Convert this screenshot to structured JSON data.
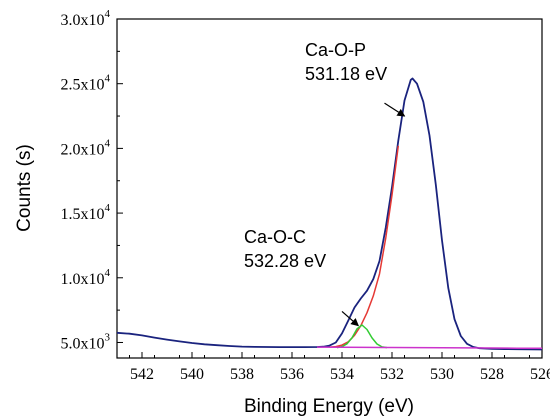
{
  "chart_data": {
    "type": "line",
    "title": "",
    "xlabel": "Binding Energy (eV)",
    "ylabel": "Counts (s)",
    "xlim": [
      543,
      526
    ],
    "ylim": [
      3800,
      30000
    ],
    "x_reversed": true,
    "x_ticks": [
      {
        "value": 542,
        "label": "542"
      },
      {
        "value": 540,
        "label": "540"
      },
      {
        "value": 538,
        "label": "538"
      },
      {
        "value": 536,
        "label": "536"
      },
      {
        "value": 534,
        "label": "534"
      },
      {
        "value": 532,
        "label": "532"
      },
      {
        "value": 530,
        "label": "530"
      },
      {
        "value": 528,
        "label": "528"
      },
      {
        "value": 526,
        "label": "526"
      }
    ],
    "y_ticks": [
      {
        "value": 5000,
        "mantissa": "5.0x10",
        "exp": "3"
      },
      {
        "value": 10000,
        "mantissa": "1.0x10",
        "exp": "4"
      },
      {
        "value": 15000,
        "mantissa": "1.5x10",
        "exp": "4"
      },
      {
        "value": 20000,
        "mantissa": "2.0x10",
        "exp": "4"
      },
      {
        "value": 25000,
        "mantissa": "2.5x10",
        "exp": "4"
      },
      {
        "value": 30000,
        "mantissa": "3.0x10",
        "exp": "4"
      }
    ],
    "grid": false,
    "legend": "none",
    "series": [
      {
        "color": "#1a237e",
        "x": [
          543,
          542.5,
          542,
          541.5,
          541,
          540.5,
          540,
          539.5,
          539,
          538.5,
          538,
          537.5,
          537,
          536.5,
          536,
          535.5,
          535,
          534.75,
          534.5,
          534.25,
          534,
          533.75,
          533.5,
          533.25,
          533,
          532.75,
          532.5,
          532.25,
          532,
          531.75,
          531.5,
          531.25,
          531.18,
          531,
          530.75,
          530.5,
          530.25,
          530,
          529.75,
          529.5,
          529.25,
          529,
          528.75,
          528.5,
          528,
          527.5,
          527,
          526.5,
          526
        ],
        "y": [
          5750,
          5680,
          5550,
          5380,
          5220,
          5080,
          4960,
          4860,
          4790,
          4730,
          4680,
          4660,
          4650,
          4640,
          4640,
          4640,
          4650,
          4670,
          4760,
          5000,
          5700,
          6700,
          7700,
          8400,
          9000,
          9900,
          11300,
          13900,
          17000,
          20600,
          23700,
          25300,
          25400,
          25000,
          23600,
          21000,
          17200,
          12900,
          9200,
          6800,
          5500,
          4900,
          4650,
          4560,
          4510,
          4490,
          4480,
          4470,
          4460
        ]
      },
      {
        "color": "#e53935",
        "x": [
          534.5,
          534.25,
          534,
          533.75,
          533.5,
          533.25,
          533,
          532.75,
          532.5,
          532.25,
          532,
          531.75
        ],
        "y": [
          4640,
          4680,
          4800,
          5050,
          5550,
          6300,
          7300,
          8600,
          10300,
          13100,
          16400,
          20200
        ]
      },
      {
        "color": "#33cc33",
        "x": [
          534.2,
          534,
          533.8,
          533.6,
          533.4,
          533.2,
          533,
          532.8,
          532.6,
          532.4,
          532.2
        ],
        "y": [
          4600,
          4680,
          4900,
          5350,
          6050,
          6350,
          6000,
          5350,
          4880,
          4660,
          4600
        ]
      },
      {
        "color": "#cc33cc",
        "x": [
          535,
          534,
          533,
          532,
          531,
          530,
          529,
          528,
          527,
          526
        ],
        "y": [
          4640,
          4630,
          4620,
          4610,
          4600,
          4590,
          4580,
          4570,
          4560,
          4550
        ]
      }
    ],
    "annotations": [
      {
        "line1": "Ca-O-P",
        "line2": "531.18 eV",
        "arrow_from": [
          532.3,
          23500
        ],
        "arrow_to": [
          531.5,
          22500
        ]
      },
      {
        "line1": "Ca-O-C",
        "line2": "532.28 eV",
        "arrow_from": [
          534.0,
          7400
        ],
        "arrow_to": [
          533.35,
          6300
        ]
      }
    ]
  }
}
